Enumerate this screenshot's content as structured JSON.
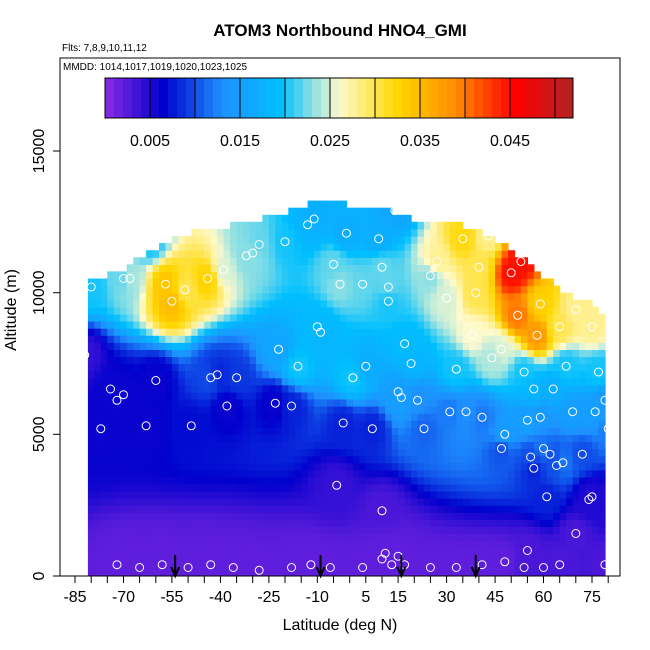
{
  "chart_data": {
    "type": "heatmap",
    "title": "ATOM3 Northbound HNO4_GMI",
    "flights_note": "Flts: 7,8,9,10,11,12",
    "dates_note": "MMDD: 1014,1017,1019,1020,1023,1025",
    "xlabel": "Latitude (deg N)",
    "ylabel": "Altitude (m)",
    "xlim": [
      -85,
      80
    ],
    "ylim": [
      0,
      17000
    ],
    "x_ticks": [
      "-85",
      "-70",
      "-55",
      "-40",
      "-25",
      "-10",
      "5",
      "15",
      "30",
      "45",
      "60",
      "75"
    ],
    "y_ticks": [
      "0",
      "5000",
      "10000",
      "15000"
    ],
    "colorbar": {
      "min": 0.0,
      "max": 0.052,
      "tick_labels": [
        "0.005",
        "0.015",
        "0.025",
        "0.035",
        "0.045"
      ],
      "tick_values": [
        0.005,
        0.015,
        0.025,
        0.035,
        0.045
      ],
      "colors": [
        "#8a2be2",
        "#0000cd",
        "#1e90ff",
        "#00bfff",
        "#fffacd",
        "#ffd700",
        "#ff8c00",
        "#ff0000",
        "#b22222"
      ]
    },
    "flight_marker_latitudes": [
      -54,
      -9,
      16,
      39
    ],
    "observations": [
      [
        -82,
        7800,
        0.004
      ],
      [
        -80,
        10200,
        0.02
      ],
      [
        -77,
        5200,
        0.006
      ],
      [
        -74,
        6600,
        0.006
      ],
      [
        -72,
        6200,
        0.006
      ],
      [
        -70,
        10500,
        0.022
      ],
      [
        -70,
        6400,
        0.006
      ],
      [
        -68,
        10500,
        0.024
      ],
      [
        -63,
        5300,
        0.006
      ],
      [
        -62,
        11800,
        0.02
      ],
      [
        -60,
        6900,
        0.006
      ],
      [
        -57,
        10300,
        0.034
      ],
      [
        -55,
        9700,
        0.035
      ],
      [
        -51,
        10100,
        0.03
      ],
      [
        -49,
        5300,
        0.007
      ],
      [
        -44,
        10500,
        0.033
      ],
      [
        -43,
        7000,
        0.01
      ],
      [
        -41,
        7100,
        0.008
      ],
      [
        -39,
        10800,
        0.025
      ],
      [
        -38,
        6000,
        0.006
      ],
      [
        -35,
        7000,
        0.009
      ],
      [
        -32,
        11300,
        0.023
      ],
      [
        -30,
        11400,
        0.023
      ],
      [
        -28,
        11700,
        0.022
      ],
      [
        -23,
        6100,
        0.006
      ],
      [
        -22,
        8000,
        0.016
      ],
      [
        -20,
        11800,
        0.02
      ],
      [
        -18,
        6000,
        0.008
      ],
      [
        -16,
        7400,
        0.02
      ],
      [
        -13,
        12400,
        0.018
      ],
      [
        -11,
        12600,
        0.017
      ],
      [
        -10,
        8800,
        0.019
      ],
      [
        -9,
        8600,
        0.018
      ],
      [
        -5,
        11000,
        0.022
      ],
      [
        -3,
        10300,
        0.023
      ],
      [
        -2,
        5400,
        0.008
      ],
      [
        -1,
        12100,
        0.017
      ],
      [
        1,
        7000,
        0.02
      ],
      [
        4,
        10300,
        0.022
      ],
      [
        5,
        7400,
        0.017
      ],
      [
        7,
        5200,
        0.008
      ],
      [
        9,
        11900,
        0.017
      ],
      [
        10,
        10900,
        0.022
      ],
      [
        12,
        10200,
        0.022
      ],
      [
        12,
        9700,
        0.02
      ],
      [
        14,
        12900,
        0.016
      ],
      [
        15,
        6500,
        0.015
      ],
      [
        16,
        6300,
        0.015
      ],
      [
        17,
        8200,
        0.019
      ],
      [
        19,
        7500,
        0.018
      ],
      [
        21,
        6200,
        0.013
      ],
      [
        23,
        5200,
        0.011
      ],
      [
        25,
        10600,
        0.023
      ],
      [
        27,
        11100,
        0.028
      ],
      [
        30,
        9800,
        0.025
      ],
      [
        31,
        5800,
        0.012
      ],
      [
        33,
        7300,
        0.02
      ],
      [
        35,
        11900,
        0.032
      ],
      [
        36,
        5800,
        0.013
      ],
      [
        38,
        8500,
        0.026
      ],
      [
        39,
        10000,
        0.03
      ],
      [
        40,
        10900,
        0.03
      ],
      [
        41,
        5600,
        0.012
      ],
      [
        43,
        12000,
        0.028
      ],
      [
        44,
        7700,
        0.024
      ],
      [
        47,
        4500,
        0.01
      ],
      [
        47,
        8000,
        0.025
      ],
      [
        48,
        5000,
        0.015
      ],
      [
        50,
        10700,
        0.045
      ],
      [
        52,
        9200,
        0.04
      ],
      [
        53,
        11100,
        0.045
      ],
      [
        54,
        7200,
        0.02
      ],
      [
        55,
        5500,
        0.015
      ],
      [
        56,
        4200,
        0.01
      ],
      [
        57,
        3800,
        0.008
      ],
      [
        57,
        6600,
        0.018
      ],
      [
        58,
        8500,
        0.038
      ],
      [
        59,
        9600,
        0.033
      ],
      [
        59,
        5600,
        0.014
      ],
      [
        60,
        4500,
        0.012
      ],
      [
        61,
        2800,
        0.008
      ],
      [
        62,
        4300,
        0.01
      ],
      [
        63,
        6600,
        0.017
      ],
      [
        64,
        3900,
        0.01
      ],
      [
        65,
        8800,
        0.03
      ],
      [
        66,
        4000,
        0.012
      ],
      [
        67,
        7400,
        0.02
      ],
      [
        69,
        5800,
        0.015
      ],
      [
        70,
        9400,
        0.028
      ],
      [
        72,
        4300,
        0.01
      ],
      [
        74,
        2700,
        0.005
      ],
      [
        75,
        8800,
        0.028
      ],
      [
        76,
        5800,
        0.015
      ],
      [
        77,
        7200,
        0.02
      ],
      [
        79,
        6200,
        0.014
      ],
      [
        80,
        5200,
        0.012
      ],
      [
        -72,
        400,
        0.002
      ],
      [
        -65,
        300,
        0.002
      ],
      [
        -58,
        400,
        0.002
      ],
      [
        -50,
        300,
        0.002
      ],
      [
        -43,
        400,
        0.002
      ],
      [
        -36,
        300,
        0.002
      ],
      [
        -28,
        200,
        0.002
      ],
      [
        -18,
        300,
        0.002
      ],
      [
        -12,
        400,
        0.002
      ],
      [
        -6,
        300,
        0.002
      ],
      [
        -4,
        3200,
        0.004
      ],
      [
        4,
        300,
        0.002
      ],
      [
        10,
        600,
        0.002
      ],
      [
        10,
        2300,
        0.003
      ],
      [
        11,
        800,
        0.002
      ],
      [
        13,
        400,
        0.002
      ],
      [
        15,
        700,
        0.002
      ],
      [
        17,
        400,
        0.002
      ],
      [
        25,
        300,
        0.002
      ],
      [
        33,
        300,
        0.002
      ],
      [
        41,
        400,
        0.002
      ],
      [
        48,
        500,
        0.002
      ],
      [
        54,
        300,
        0.003
      ],
      [
        55,
        900,
        0.003
      ],
      [
        60,
        300,
        0.003
      ],
      [
        65,
        400,
        0.003
      ],
      [
        70,
        1500,
        0.003
      ],
      [
        75,
        2800,
        0.005
      ],
      [
        79,
        400,
        0.003
      ]
    ]
  }
}
